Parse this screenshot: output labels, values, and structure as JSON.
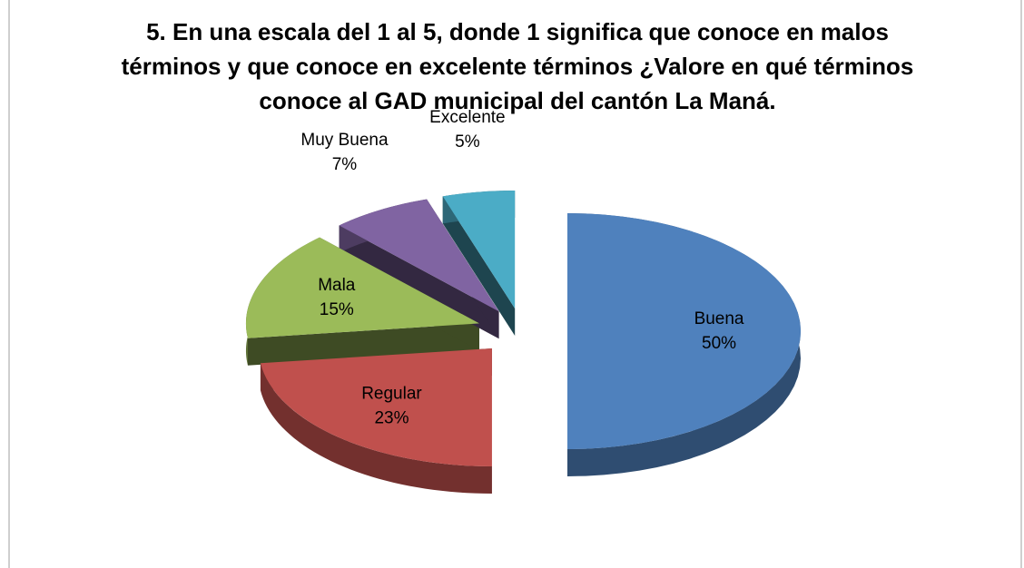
{
  "chart_data": {
    "type": "pie",
    "title": "5. En una  escala del 1 al 5, donde  1 significa que conoce en malos términos y  que conoce en excelente términos ¿Valore en qué términos conoce al GAD municipal del cantón La Maná.",
    "categories": [
      "Buena",
      "Regular",
      "Mala",
      "Muy Buena",
      "Excelente"
    ],
    "values": [
      50,
      23,
      15,
      7,
      5
    ],
    "value_labels": [
      "50%",
      "23%",
      "15%",
      "7%",
      "5%"
    ],
    "colors": [
      "#4f81bd",
      "#c0504d",
      "#9bbb59",
      "#8064a2",
      "#4bacc6"
    ]
  }
}
